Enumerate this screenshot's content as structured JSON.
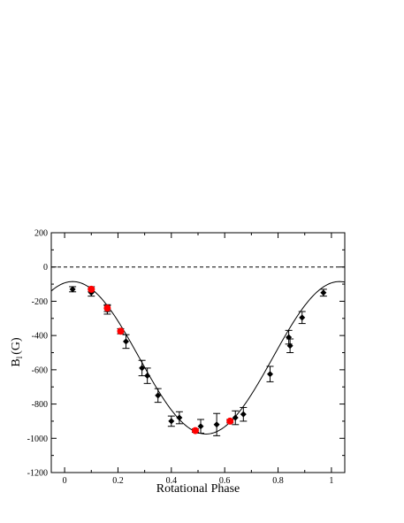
{
  "chart_data": {
    "type": "scatter",
    "title": "",
    "xlabel": "Rotational Phase",
    "ylabel_main": "B",
    "ylabel_sub": "l",
    "ylabel_unit": "(G)",
    "xlim": [
      -0.05,
      1.05
    ],
    "ylim": [
      -1200,
      200
    ],
    "xticks": [
      0,
      0.2,
      0.4,
      0.6,
      0.8,
      1
    ],
    "xtick_labels": [
      "0",
      "0.2",
      "0.4",
      "0.6",
      "0.8",
      "1"
    ],
    "yticks": [
      200,
      0,
      -200,
      -400,
      -600,
      -800,
      -1000,
      -1200
    ],
    "ytick_labels": [
      "200",
      "0",
      "-200",
      "-400",
      "-600",
      "-800",
      "-1000",
      "-1200"
    ],
    "grid": false,
    "reference_line": {
      "y": 0,
      "style": "dashed"
    },
    "fit_curve": {
      "model": "sinusoid",
      "mean": -530,
      "amplitude": 445,
      "min_phase": 0.53
    },
    "series": [
      {
        "marker": "diamond",
        "color": "#000000",
        "points": [
          {
            "x": 0.03,
            "y": -130,
            "err": 15
          },
          {
            "x": 0.1,
            "y": -150,
            "err": 20
          },
          {
            "x": 0.16,
            "y": -250,
            "err": 25
          },
          {
            "x": 0.23,
            "y": -435,
            "err": 40
          },
          {
            "x": 0.29,
            "y": -590,
            "err": 45
          },
          {
            "x": 0.31,
            "y": -635,
            "err": 45
          },
          {
            "x": 0.35,
            "y": -750,
            "err": 40
          },
          {
            "x": 0.4,
            "y": -900,
            "err": 30
          },
          {
            "x": 0.43,
            "y": -880,
            "err": 35
          },
          {
            "x": 0.51,
            "y": -930,
            "err": 40
          },
          {
            "x": 0.57,
            "y": -920,
            "err": 65
          },
          {
            "x": 0.64,
            "y": -880,
            "err": 40
          },
          {
            "x": 0.67,
            "y": -860,
            "err": 40
          },
          {
            "x": 0.77,
            "y": -625,
            "err": 45
          },
          {
            "x": 0.84,
            "y": -410,
            "err": 40
          },
          {
            "x": 0.845,
            "y": -460,
            "err": 40
          },
          {
            "x": 0.89,
            "y": -295,
            "err": 35
          },
          {
            "x": 0.97,
            "y": -150,
            "err": 20
          }
        ]
      },
      {
        "marker": "circle",
        "color": "#ff0000",
        "points": [
          {
            "x": 0.1,
            "y": -130,
            "err": 15
          },
          {
            "x": 0.16,
            "y": -240,
            "err": 20
          },
          {
            "x": 0.21,
            "y": -375,
            "err": 15
          },
          {
            "x": 0.49,
            "y": -955,
            "err": 10
          },
          {
            "x": 0.62,
            "y": -900,
            "err": 10
          }
        ]
      }
    ]
  }
}
